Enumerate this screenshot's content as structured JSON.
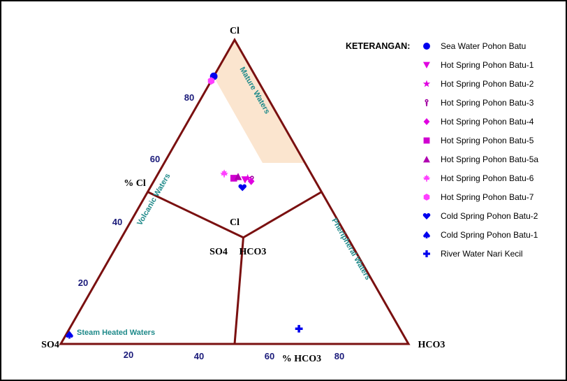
{
  "chart_data": {
    "type": "scatter",
    "subtype": "ternary",
    "axes": {
      "apex_top": "Cl",
      "corner_left": "SO4",
      "corner_right": "HCO3",
      "left_edge_label": "% Cl",
      "bottom_edge_label": "% HCO3",
      "left_ticks": [
        "20",
        "40",
        "60",
        "80"
      ],
      "bottom_ticks": [
        "20",
        "40",
        "60",
        "80"
      ],
      "center_labels": {
        "top": "Cl",
        "left": "SO4",
        "right": "HCO3"
      }
    },
    "regions": [
      {
        "name": "Mature Waters",
        "color": "#fbe5cf"
      },
      {
        "name": "Volcanic Waters"
      },
      {
        "name": "Pheripheral Waters"
      },
      {
        "name": "Steam Heated Waters"
      }
    ],
    "legend_title": "KETERANGAN:",
    "series": [
      {
        "name": "Sea Water Pohon Batu",
        "symbol": "circle",
        "color": "#0000ee",
        "points": [
          {
            "cl": 88,
            "so4": 12,
            "hco3": 0
          }
        ]
      },
      {
        "name": "Hot Spring Pohon Batu-1",
        "symbol": "triangle-down",
        "color": "#e000e0",
        "points": [
          {
            "cl": 54,
            "so4": 20,
            "hco3": 26
          }
        ]
      },
      {
        "name": "Hot Spring Pohon Batu-2",
        "symbol": "star",
        "color": "#e000e0",
        "points": [
          {
            "cl": 54.5,
            "so4": 19,
            "hco3": 26.5
          }
        ]
      },
      {
        "name": "Hot Spring Pohon Batu-3",
        "symbol": "tick",
        "color": "#a000a0",
        "points": [
          {
            "cl": 54,
            "so4": 18,
            "hco3": 28
          }
        ]
      },
      {
        "name": "Hot Spring Pohon Batu-4",
        "symbol": "diamond",
        "color": "#e000e0",
        "points": [
          {
            "cl": 53.5,
            "so4": 18.5,
            "hco3": 28
          }
        ]
      },
      {
        "name": "Hot Spring Pohon Batu-5",
        "symbol": "square",
        "color": "#d000d0",
        "points": [
          {
            "cl": 54.5,
            "so4": 23,
            "hco3": 22.5
          }
        ]
      },
      {
        "name": "Hot Spring Pohon Batu-5a",
        "symbol": "triangle-up",
        "color": "#b000b0",
        "points": [
          {
            "cl": 55,
            "so4": 21.5,
            "hco3": 23.5
          }
        ]
      },
      {
        "name": "Hot Spring Pohon Batu-6",
        "symbol": "maple",
        "color": "#ff40ff",
        "points": [
          {
            "cl": 56,
            "so4": 25,
            "hco3": 19
          }
        ]
      },
      {
        "name": "Hot Spring Pohon Batu-7",
        "symbol": "hexagon",
        "color": "#ff40ff",
        "points": [
          {
            "cl": 86.5,
            "so4": 13.5,
            "hco3": 0
          }
        ]
      },
      {
        "name": "Cold Spring Pohon Batu-2",
        "symbol": "heart",
        "color": "#0000ee",
        "points": [
          {
            "cl": 51.5,
            "so4": 22,
            "hco3": 26.5
          }
        ]
      },
      {
        "name": "Cold Spring Pohon Batu-1",
        "symbol": "spade",
        "color": "#0000ee",
        "points": [
          {
            "cl": 3,
            "so4": 96,
            "hco3": 1
          }
        ]
      },
      {
        "name": "River Water Nari Kecil",
        "symbol": "cross",
        "color": "#0000ee",
        "points": [
          {
            "cl": 5,
            "so4": 29,
            "hco3": 66
          }
        ]
      }
    ]
  }
}
